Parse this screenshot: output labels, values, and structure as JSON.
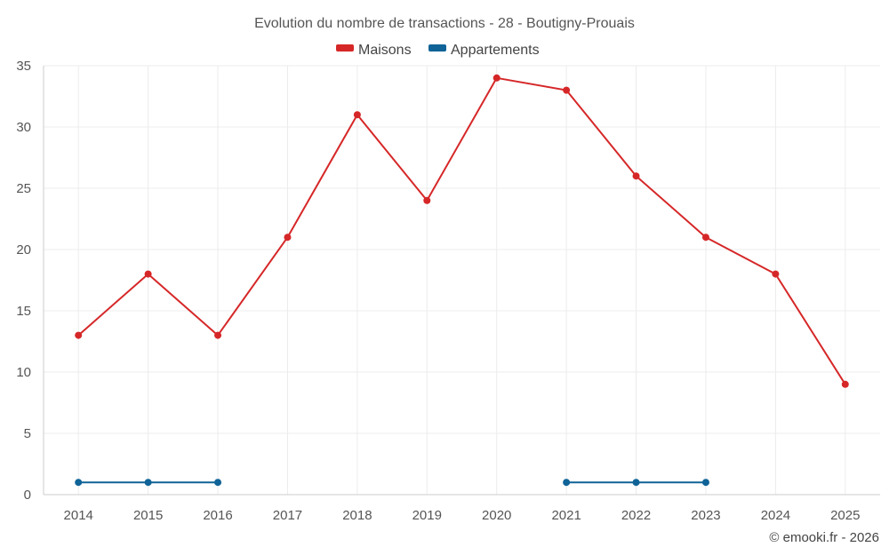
{
  "chart_data": {
    "type": "line",
    "title": "Evolution du nombre de transactions - 28 - Boutigny-Prouais",
    "categories": [
      "2014",
      "2015",
      "2016",
      "2017",
      "2018",
      "2019",
      "2020",
      "2021",
      "2022",
      "2023",
      "2024",
      "2025"
    ],
    "series": [
      {
        "name": "Maisons",
        "color": "#d62728",
        "values": [
          13,
          18,
          13,
          21,
          31,
          24,
          34,
          33,
          26,
          21,
          18,
          9
        ]
      },
      {
        "name": "Appartements",
        "color": "#0f6397",
        "values": [
          1,
          1,
          1,
          null,
          null,
          null,
          null,
          1,
          1,
          1,
          null,
          null
        ]
      }
    ],
    "ylim": [
      0,
      35
    ],
    "yticks": [
      0,
      5,
      10,
      15,
      20,
      25,
      30,
      35
    ],
    "xlabel": "",
    "ylabel": "",
    "grid": true,
    "legend_position": "top-center"
  },
  "credit": "© emooki.fr - 2026"
}
